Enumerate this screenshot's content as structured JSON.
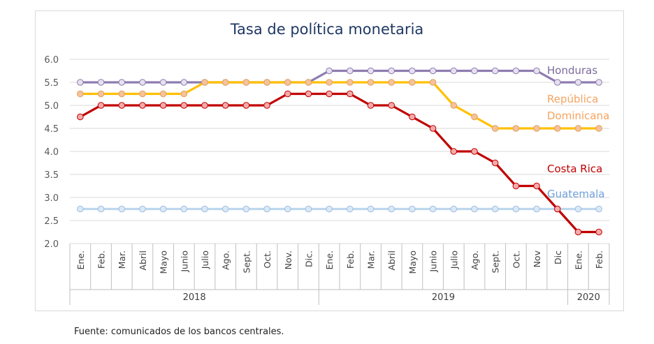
{
  "chart_data": {
    "type": "line",
    "title": "Tasa de política monetaria",
    "ylim": [
      2.0,
      6.0
    ],
    "y_ticks": [
      "2.0",
      "2.5",
      "3.0",
      "3.5",
      "4.0",
      "4.5",
      "5.0",
      "5.5",
      "6.0"
    ],
    "grid": "horizontal",
    "categories": [
      "Ene.",
      "Feb.",
      "Mar.",
      "Abril",
      "Mayo",
      "Junio",
      "Julio",
      "Ago.",
      "Sept.",
      "Oct.",
      "Nov.",
      "Dic.",
      "Ene.",
      "Feb.",
      "Mar.",
      "Abril",
      "Mayo",
      "Junio",
      "Julio",
      "Ago.",
      "Sept.",
      "Oct.",
      "Nov",
      "Dic",
      "Ene.",
      "Feb."
    ],
    "year_groups": [
      {
        "label": "2018",
        "start": 0,
        "end": 11
      },
      {
        "label": "2019",
        "start": 12,
        "end": 23
      },
      {
        "label": "2020",
        "start": 24,
        "end": 25
      }
    ],
    "series": [
      {
        "name": "Honduras",
        "color": "#8e7cb0",
        "marker_fill": "#e6e0f0",
        "values": [
          5.5,
          5.5,
          5.5,
          5.5,
          5.5,
          5.5,
          5.5,
          5.5,
          5.5,
          5.5,
          5.5,
          5.5,
          5.75,
          5.75,
          5.75,
          5.75,
          5.75,
          5.75,
          5.75,
          5.75,
          5.75,
          5.75,
          5.75,
          5.5,
          5.5,
          5.5
        ]
      },
      {
        "name": "República Dominicana",
        "color": "#ffc000",
        "marker_fill": "#f7c29a",
        "values": [
          5.25,
          5.25,
          5.25,
          5.25,
          5.25,
          5.25,
          5.5,
          5.5,
          5.5,
          5.5,
          5.5,
          5.5,
          5.5,
          5.5,
          5.5,
          5.5,
          5.5,
          5.5,
          5.0,
          4.75,
          4.5,
          4.5,
          4.5,
          4.5,
          4.5,
          4.5
        ]
      },
      {
        "name": "Costa Rica",
        "color": "#c00000",
        "marker_fill": "#f4aaaa",
        "values": [
          4.75,
          5.0,
          5.0,
          5.0,
          5.0,
          5.0,
          5.0,
          5.0,
          5.0,
          5.0,
          5.25,
          5.25,
          5.25,
          5.25,
          5.0,
          5.0,
          4.75,
          4.5,
          4.0,
          4.0,
          3.75,
          3.25,
          3.25,
          2.75,
          2.25,
          2.25
        ]
      },
      {
        "name": "Guatemala",
        "color": "#bdd7ee",
        "marker_fill": "#dbe8f6",
        "values": [
          2.75,
          2.75,
          2.75,
          2.75,
          2.75,
          2.75,
          2.75,
          2.75,
          2.75,
          2.75,
          2.75,
          2.75,
          2.75,
          2.75,
          2.75,
          2.75,
          2.75,
          2.75,
          2.75,
          2.75,
          2.75,
          2.75,
          2.75,
          2.75,
          2.75,
          2.75
        ]
      }
    ],
    "labels": [
      {
        "lines": [
          "Honduras"
        ],
        "color": "#7a6a9c"
      },
      {
        "lines": [
          "República",
          "Dominicana"
        ],
        "color": "#f4a460"
      },
      {
        "lines": [
          "Costa Rica"
        ],
        "color": "#c00000"
      },
      {
        "lines": [
          "Guatemala"
        ],
        "color": "#6fa0d8"
      }
    ]
  },
  "source": "Fuente: comunicados de los bancos centrales."
}
